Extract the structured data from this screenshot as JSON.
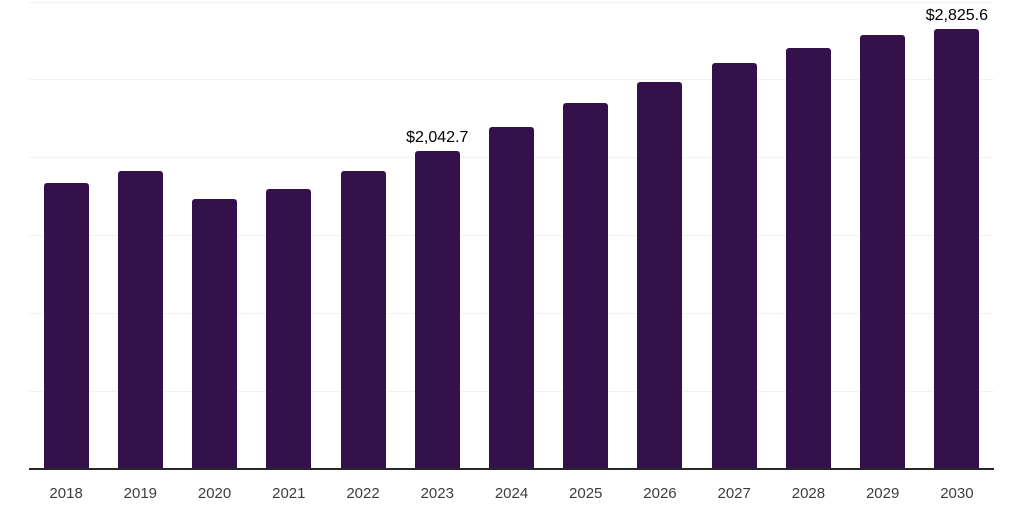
{
  "chart_data": {
    "type": "bar",
    "title": "",
    "xlabel": "",
    "ylabel": "",
    "categories": [
      "2018",
      "2019",
      "2020",
      "2021",
      "2022",
      "2023",
      "2024",
      "2025",
      "2026",
      "2027",
      "2028",
      "2029",
      "2030"
    ],
    "values": [
      1835,
      1910,
      1735,
      1800,
      1910,
      2042.7,
      2195,
      2350,
      2485,
      2605,
      2700,
      2785,
      2825.6
    ],
    "data_labels": [
      {
        "category": "2023",
        "text": "$2,042.7"
      },
      {
        "category": "2030",
        "text": "$2,825.6"
      }
    ],
    "ylim": [
      0,
      3000
    ],
    "gridline_interval": 500,
    "grid": "horizontal-only",
    "legend": "none",
    "y_axis_tick_labels_visible": false,
    "colors": {
      "bar": "#35114c",
      "gridline": "#f2f2f2",
      "axis_line": "#262626",
      "tick_label": "#3d3d3d",
      "data_label": "#000000",
      "background": "#ffffff"
    }
  }
}
